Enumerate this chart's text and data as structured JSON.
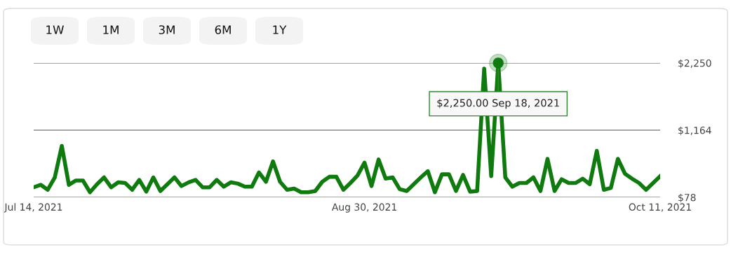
{
  "chart_data": {
    "type": "line",
    "x": [
      "2021-07-14",
      "2021-07-15",
      "2021-07-16",
      "2021-07-17",
      "2021-07-18",
      "2021-07-19",
      "2021-07-20",
      "2021-07-21",
      "2021-07-22",
      "2021-07-23",
      "2021-07-24",
      "2021-07-25",
      "2021-07-26",
      "2021-07-27",
      "2021-07-28",
      "2021-07-29",
      "2021-07-30",
      "2021-07-31",
      "2021-08-01",
      "2021-08-02",
      "2021-08-03",
      "2021-08-04",
      "2021-08-05",
      "2021-08-06",
      "2021-08-07",
      "2021-08-08",
      "2021-08-09",
      "2021-08-10",
      "2021-08-11",
      "2021-08-12",
      "2021-08-13",
      "2021-08-14",
      "2021-08-15",
      "2021-08-16",
      "2021-08-17",
      "2021-08-18",
      "2021-08-19",
      "2021-08-20",
      "2021-08-21",
      "2021-08-22",
      "2021-08-23",
      "2021-08-24",
      "2021-08-25",
      "2021-08-26",
      "2021-08-27",
      "2021-08-28",
      "2021-08-29",
      "2021-08-30",
      "2021-08-31",
      "2021-09-01",
      "2021-09-02",
      "2021-09-03",
      "2021-09-04",
      "2021-09-05",
      "2021-09-06",
      "2021-09-07",
      "2021-09-08",
      "2021-09-09",
      "2021-09-10",
      "2021-09-11",
      "2021-09-12",
      "2021-09-13",
      "2021-09-14",
      "2021-09-15",
      "2021-09-16",
      "2021-09-17",
      "2021-09-18",
      "2021-09-19",
      "2021-09-20",
      "2021-09-21",
      "2021-09-22",
      "2021-09-23",
      "2021-09-24",
      "2021-09-25",
      "2021-09-26",
      "2021-09-27",
      "2021-09-28",
      "2021-09-29",
      "2021-09-30",
      "2021-10-01",
      "2021-10-02",
      "2021-10-03",
      "2021-10-04",
      "2021-10-05",
      "2021-10-06",
      "2021-10-07",
      "2021-10-08",
      "2021-10-09",
      "2021-10-10",
      "2021-10-11"
    ],
    "series": [
      {
        "color": "#0f7b0f",
        "values": [
          240,
          280,
          200,
          400,
          910,
          280,
          350,
          350,
          160,
          290,
          400,
          240,
          320,
          310,
          200,
          360,
          170,
          400,
          180,
          290,
          400,
          260,
          320,
          360,
          240,
          240,
          360,
          250,
          320,
          300,
          250,
          250,
          480,
          330,
          660,
          330,
          200,
          220,
          160,
          160,
          180,
          330,
          410,
          410,
          200,
          310,
          430,
          640,
          260,
          690,
          380,
          400,
          210,
          180,
          290,
          400,
          500,
          160,
          450,
          450,
          180,
          440,
          170,
          180,
          2160,
          420,
          2250,
          400,
          250,
          310,
          310,
          400,
          180,
          700,
          180,
          370,
          310,
          310,
          380,
          290,
          830,
          200,
          230,
          700,
          460,
          380,
          310,
          200,
          310,
          420
        ]
      }
    ],
    "xlim": [
      "2021-07-14",
      "2021-10-11"
    ],
    "xticks": [
      {
        "value": "2021-07-14",
        "label": "Jul 14, 2021"
      },
      {
        "value": "2021-08-30",
        "label": "Aug 30, 2021"
      },
      {
        "value": "2021-10-11",
        "label": "Oct 11, 2021"
      }
    ],
    "ylim": [
      78,
      2250
    ],
    "yticks": [
      {
        "value": 78,
        "label": "$78"
      },
      {
        "value": 1164,
        "label": "$1,164"
      },
      {
        "value": 2250,
        "label": "$2,250"
      }
    ],
    "grid": "y",
    "marker": "none",
    "line_style": "solid",
    "annotations": [
      "1W",
      "1M",
      "3M",
      "6M",
      "1Y",
      {
        "text": "$2,250.00 Sep 18, 2021",
        "x": "2021-09-18",
        "y": 2250
      }
    ]
  }
}
